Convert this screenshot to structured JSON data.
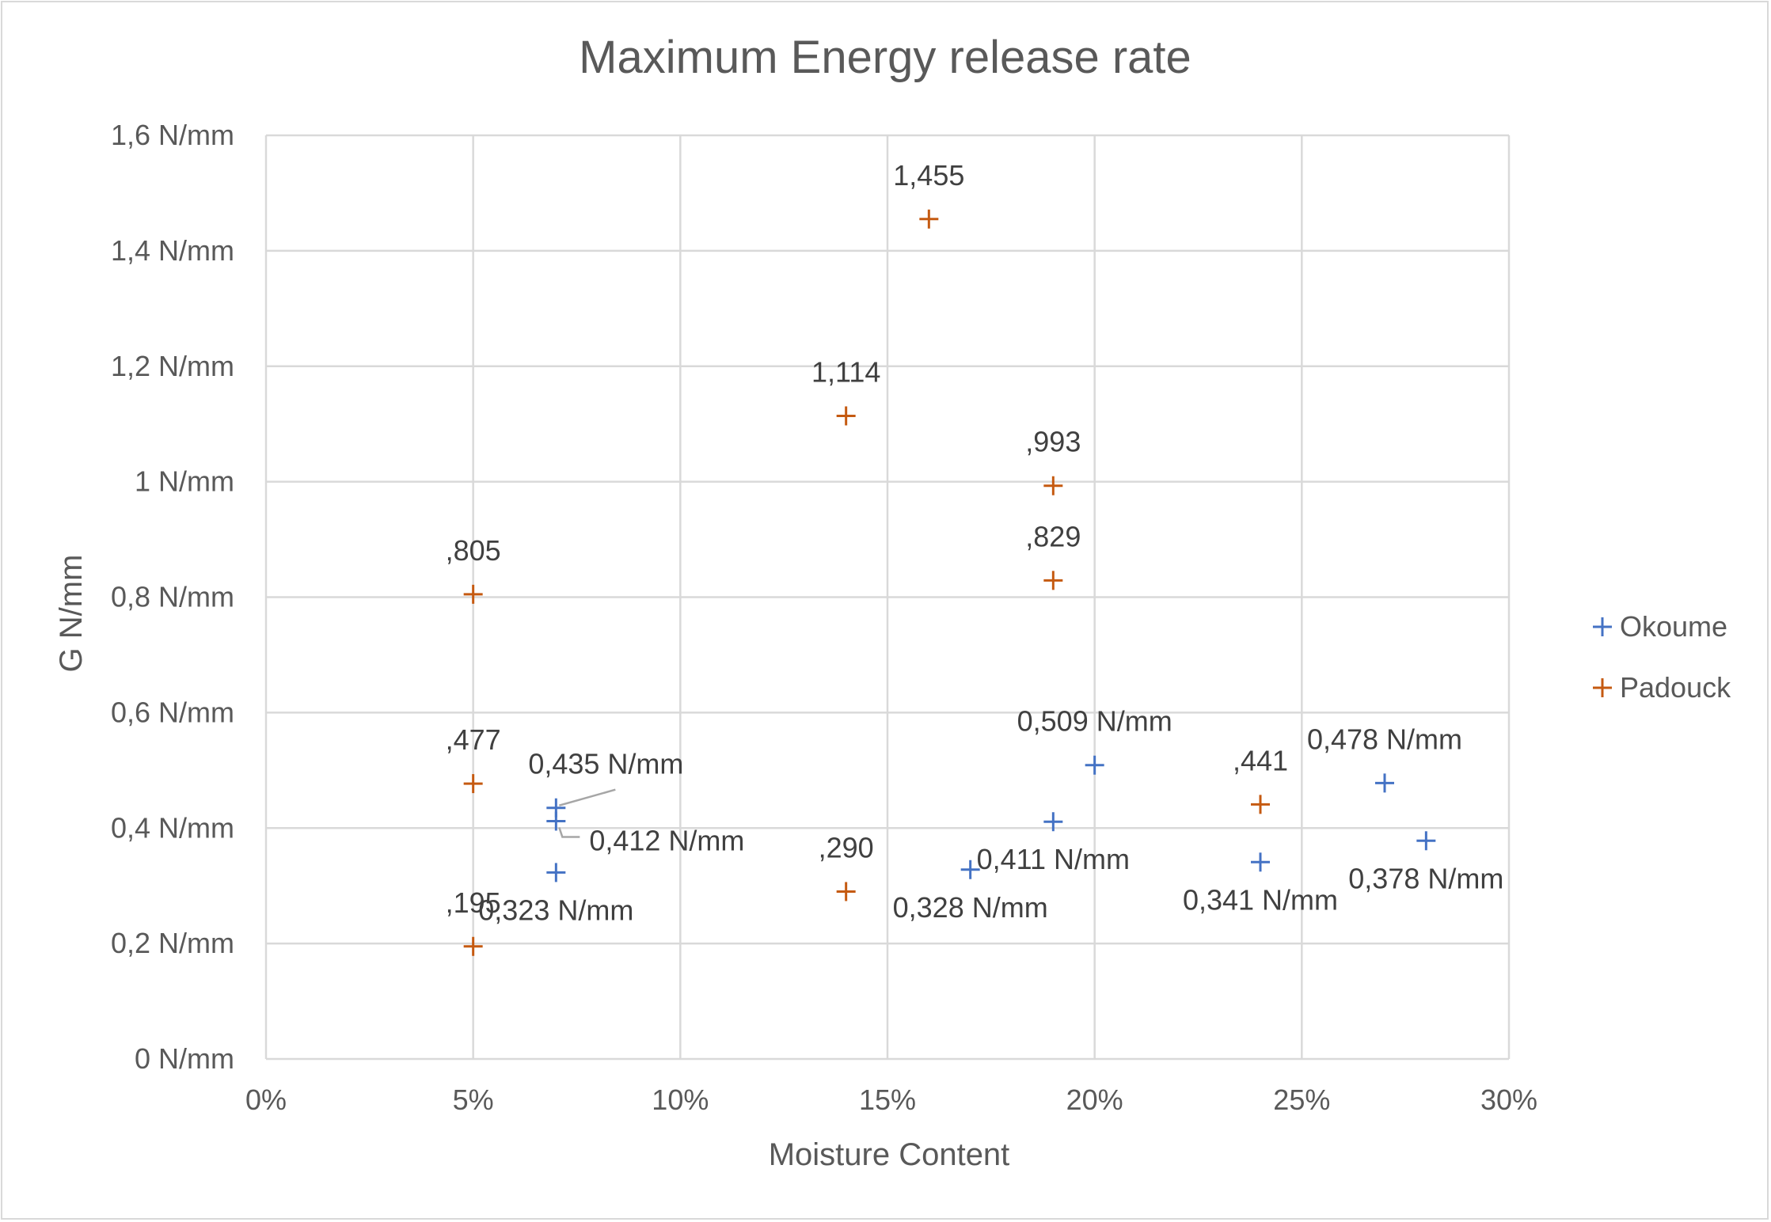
{
  "chart_data": {
    "type": "scatter",
    "title": "Maximum Energy release rate",
    "xlabel": "Moisture Content",
    "ylabel": "G N/mm",
    "xlim": [
      0,
      0.3
    ],
    "ylim": [
      0,
      1.6
    ],
    "x_ticks": [
      {
        "value": 0,
        "label": "0%"
      },
      {
        "value": 0.05,
        "label": "5%"
      },
      {
        "value": 0.1,
        "label": "10%"
      },
      {
        "value": 0.15,
        "label": "15%"
      },
      {
        "value": 0.2,
        "label": "20%"
      },
      {
        "value": 0.25,
        "label": "25%"
      },
      {
        "value": 0.3,
        "label": "30%"
      }
    ],
    "y_ticks": [
      {
        "value": 0,
        "label": "0 N/mm"
      },
      {
        "value": 0.2,
        "label": "0,2 N/mm"
      },
      {
        "value": 0.4,
        "label": "0,4 N/mm"
      },
      {
        "value": 0.6,
        "label": "0,6 N/mm"
      },
      {
        "value": 0.8,
        "label": "0,8 N/mm"
      },
      {
        "value": 1.0,
        "label": "1 N/mm"
      },
      {
        "value": 1.2,
        "label": "1,2 N/mm"
      },
      {
        "value": 1.4,
        "label": "1,4 N/mm"
      },
      {
        "value": 1.6,
        "label": "1,6 N/mm"
      }
    ],
    "grid": true,
    "legend": "right",
    "marker": "plus",
    "series": [
      {
        "name": "Okoume",
        "color": "#4472c4",
        "points": [
          {
            "x": 0.07,
            "y": 0.435,
            "label": "0,435 N/mm",
            "label_pos": "callout-up"
          },
          {
            "x": 0.07,
            "y": 0.412,
            "label": "0,412 N/mm",
            "label_pos": "callout-right"
          },
          {
            "x": 0.07,
            "y": 0.323,
            "label": "0,323 N/mm",
            "label_pos": "below"
          },
          {
            "x": 0.17,
            "y": 0.328,
            "label": "0,328 N/mm",
            "label_pos": "below"
          },
          {
            "x": 0.19,
            "y": 0.411,
            "label": "0,411 N/mm",
            "label_pos": "below"
          },
          {
            "x": 0.2,
            "y": 0.509,
            "label": "0,509 N/mm",
            "label_pos": "above"
          },
          {
            "x": 0.24,
            "y": 0.341,
            "label": "0,341 N/mm",
            "label_pos": "below"
          },
          {
            "x": 0.27,
            "y": 0.478,
            "label": "0,478 N/mm",
            "label_pos": "above"
          },
          {
            "x": 0.28,
            "y": 0.378,
            "label": "0,378 N/mm",
            "label_pos": "below"
          }
        ]
      },
      {
        "name": "Padouck",
        "color": "#c55a11",
        "points": [
          {
            "x": 0.05,
            "y": 0.805,
            "label": ",805",
            "label_pos": "above"
          },
          {
            "x": 0.05,
            "y": 0.477,
            "label": ",477",
            "label_pos": "above"
          },
          {
            "x": 0.05,
            "y": 0.195,
            "label": ",195",
            "label_pos": "above"
          },
          {
            "x": 0.14,
            "y": 1.114,
            "label": "1,114",
            "label_pos": "above"
          },
          {
            "x": 0.14,
            "y": 0.29,
            "label": ",290",
            "label_pos": "above"
          },
          {
            "x": 0.16,
            "y": 1.455,
            "label": "1,455",
            "label_pos": "above"
          },
          {
            "x": 0.19,
            "y": 0.993,
            "label": ",993",
            "label_pos": "above"
          },
          {
            "x": 0.19,
            "y": 0.829,
            "label": ",829",
            "label_pos": "above"
          },
          {
            "x": 0.24,
            "y": 0.441,
            "label": ",441",
            "label_pos": "above"
          }
        ]
      }
    ]
  }
}
